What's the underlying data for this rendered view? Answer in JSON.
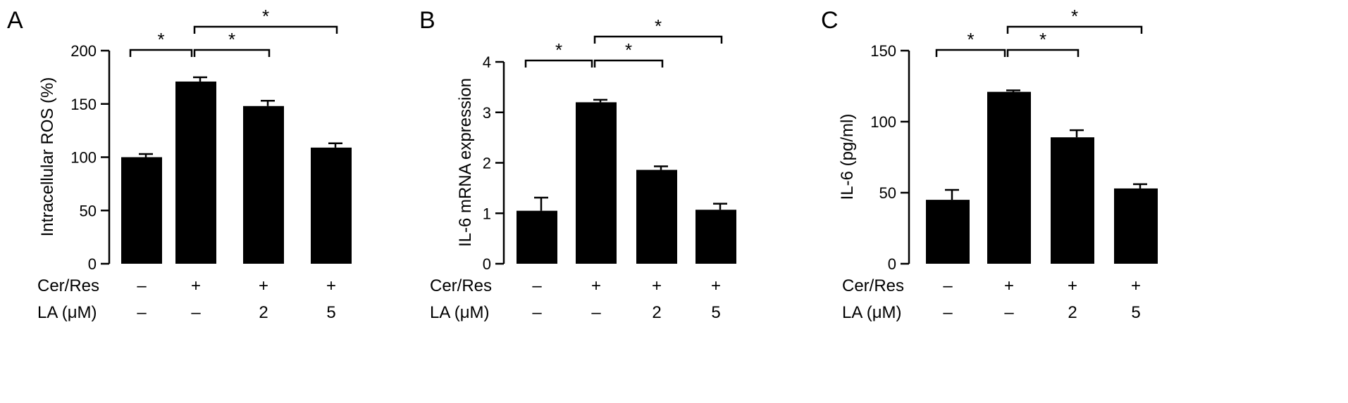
{
  "figure": {
    "condition_rows": [
      {
        "label": "Cer/Res",
        "values": [
          "–",
          "+",
          "+",
          "+"
        ]
      },
      {
        "label": "LA (μM)",
        "values": [
          "–",
          "–",
          "2",
          "5"
        ]
      }
    ],
    "significance_marker": "*"
  },
  "chart_data": [
    {
      "type": "bar",
      "panel": "A",
      "title": "",
      "xlabel": "",
      "ylabel": "Intracellular ROS (%)",
      "ylim": [
        0,
        200
      ],
      "yticks": [
        0,
        50,
        100,
        150,
        200
      ],
      "categories": [
        "1",
        "2",
        "3",
        "4"
      ],
      "values": [
        100,
        171,
        148,
        109
      ],
      "errors": [
        3,
        4,
        5,
        4
      ],
      "color": "#000000",
      "significance": [
        {
          "from": 0,
          "to": 1,
          "label": "*"
        },
        {
          "from": 1,
          "to": 2,
          "label": "*"
        },
        {
          "from": 1,
          "to": 3,
          "label": "*"
        }
      ]
    },
    {
      "type": "bar",
      "panel": "B",
      "title": "",
      "xlabel": "",
      "ylabel": "IL-6 mRNA expression",
      "ylim": [
        0,
        4
      ],
      "yticks": [
        0,
        1,
        2,
        3,
        4
      ],
      "categories": [
        "1",
        "2",
        "3",
        "4"
      ],
      "values": [
        1.05,
        3.2,
        1.86,
        1.07
      ],
      "errors": [
        0.26,
        0.05,
        0.07,
        0.12
      ],
      "color": "#000000",
      "significance": [
        {
          "from": 0,
          "to": 1,
          "label": "*"
        },
        {
          "from": 1,
          "to": 2,
          "label": "*"
        },
        {
          "from": 1,
          "to": 3,
          "label": "*"
        }
      ]
    },
    {
      "type": "bar",
      "panel": "C",
      "title": "",
      "xlabel": "",
      "ylabel": "IL-6 (pg/ml)",
      "ylim": [
        0,
        150
      ],
      "yticks": [
        0,
        50,
        100,
        150
      ],
      "categories": [
        "1",
        "2",
        "3",
        "4"
      ],
      "values": [
        45,
        121,
        89,
        53
      ],
      "errors": [
        7,
        1,
        5,
        3
      ],
      "color": "#000000",
      "significance": [
        {
          "from": 0,
          "to": 1,
          "label": "*"
        },
        {
          "from": 1,
          "to": 2,
          "label": "*"
        },
        {
          "from": 1,
          "to": 3,
          "label": "*"
        }
      ]
    }
  ]
}
